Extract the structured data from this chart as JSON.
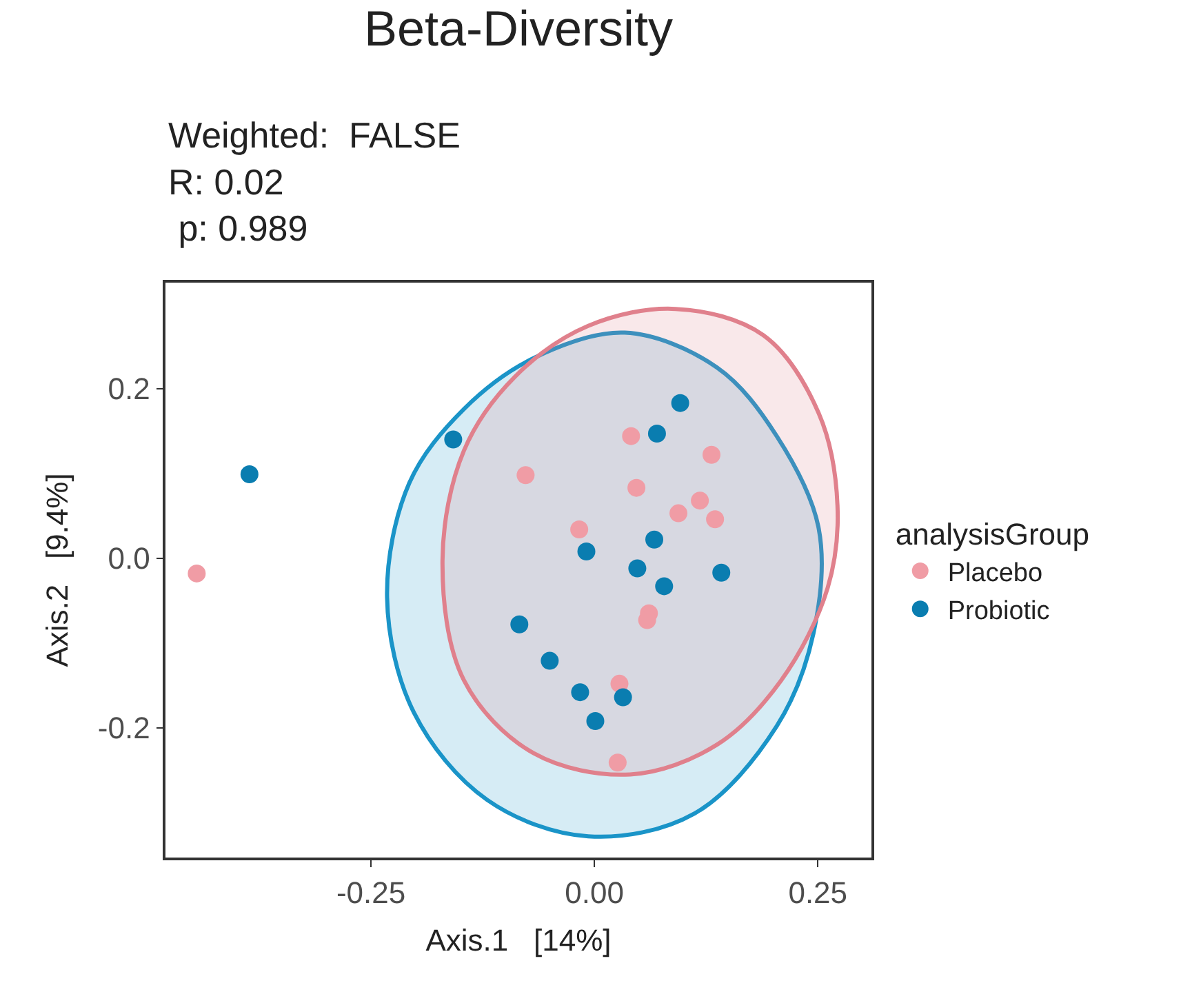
{
  "chart_data": {
    "type": "scatter",
    "title": "Beta-Diversity",
    "subtitle": "Weighted:  FALSE\nR: 0.02\n p: 0.989",
    "xlabel": "Axis.1   [14%]",
    "ylabel": "Axis.2   [9.4%]",
    "legend_title": "analysisGroup",
    "legend": "right",
    "marker": "circle",
    "xlim": [
      -0.48,
      0.31
    ],
    "ylim": [
      -0.353,
      0.325
    ],
    "xticks": [
      -0.25,
      {
        "value": 0,
        "label": "0.00"
      },
      0.25
    ],
    "yticks": [
      -0.2,
      {
        "value": 0,
        "label": "0.0"
      },
      0.2
    ],
    "series": [
      {
        "type": "area",
        "marker": "none",
        "color": "#1a94c8",
        "x": [
          0.034,
          0.137,
          0.204,
          0.251,
          0.245,
          0.204,
          0.112,
          -0.007,
          -0.12,
          -0.202,
          -0.232,
          -0.207,
          -0.146,
          -0.068,
          0.034
        ],
        "values": [
          0.266,
          0.225,
          0.144,
          0.035,
          -0.089,
          -0.198,
          -0.301,
          -0.328,
          -0.285,
          -0.182,
          -0.046,
          0.089,
          0.176,
          0.236,
          0.266
        ]
      },
      {
        "type": "area",
        "marker": "none",
        "color": "#e0808c",
        "x": [
          0.091,
          0.189,
          0.251,
          0.272,
          0.261,
          0.209,
          0.137,
          0.04,
          -0.068,
          -0.146,
          -0.17,
          -0.146,
          -0.089,
          -0.007,
          0.091
        ],
        "values": [
          0.294,
          0.263,
          0.171,
          0.062,
          -0.035,
          -0.144,
          -0.22,
          -0.255,
          -0.23,
          -0.144,
          -0.003,
          0.127,
          0.214,
          0.274,
          0.294
        ]
      },
      {
        "name": "Placebo",
        "color": "#f09ca5",
        "x": [
          -0.445,
          -0.077,
          0.041,
          0.131,
          0.047,
          0.118,
          0.094,
          0.135,
          -0.017,
          0.061,
          0.059,
          0.028,
          0.026
        ],
        "values": [
          -0.018,
          0.098,
          0.144,
          0.122,
          0.083,
          0.068,
          0.053,
          0.046,
          0.034,
          -0.065,
          -0.073,
          -0.148,
          -0.241
        ]
      },
      {
        "name": "Probiotic",
        "color": "#0a7db0",
        "x": [
          -0.386,
          -0.158,
          0.096,
          0.07,
          0.067,
          -0.009,
          0.048,
          0.142,
          0.078,
          -0.084,
          -0.05,
          -0.016,
          0.032,
          0.001
        ],
        "values": [
          0.099,
          0.14,
          0.183,
          0.147,
          0.022,
          0.008,
          -0.012,
          -0.017,
          -0.033,
          -0.078,
          -0.121,
          -0.158,
          -0.164,
          -0.192
        ]
      }
    ]
  }
}
